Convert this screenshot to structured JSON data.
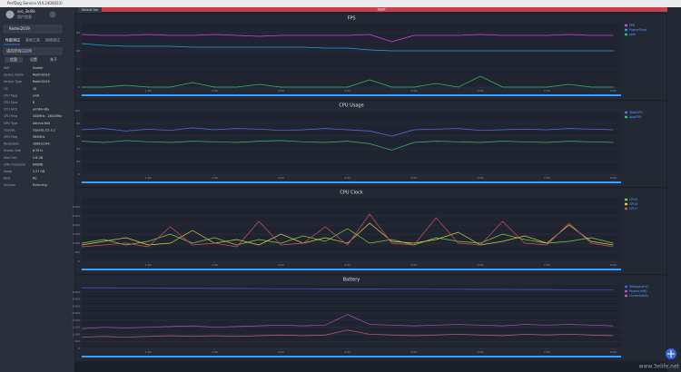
{
  "window": {
    "title": "PerfDog Service V(4.2400023)",
    "tab": "Default Tab",
    "banner": "labeP",
    "watermark": "www.3elife.net"
  },
  "sidebar": {
    "user": "sso_3elife",
    "user_sub": "用户信息",
    "device": "Redmi2019",
    "tabs": [
      "性能测试",
      "其他工具",
      "网络测试"
    ],
    "app_select": "请选择测试应用",
    "subtabs": [
      "信息",
      "设置",
      "关于"
    ],
    "rows": [
      [
        "Wifi",
        "Enable"
      ],
      [
        "Device Name",
        "Redmi2019"
      ],
      [
        "Device Type",
        "Redmi2019"
      ],
      [
        "OS",
        "10"
      ],
      [
        "CPU Type",
        "sm8"
      ],
      [
        "CPU Core",
        "8"
      ],
      [
        "CPU Arch",
        "arm64-v8a"
      ],
      [
        "CPU Freq",
        "300MHz - 2841MHz"
      ],
      [
        "GPU Type",
        "Adreno 640"
      ],
      [
        "OpenGL",
        "OpenGL ES 3.2"
      ],
      [
        "GPU Freq",
        "585MHz"
      ],
      [
        "Resolution",
        "1080x2340"
      ],
      [
        "Screen Size",
        "6.39 in"
      ],
      [
        "Max Fmt",
        "5.8 GB"
      ],
      [
        "LMK Threshold",
        "640MB"
      ],
      [
        "Swap",
        "2.57 GB"
      ],
      [
        "Root",
        "No"
      ],
      [
        "SeLinux",
        "Enforcing"
      ]
    ]
  },
  "chart_data": [
    {
      "type": "line",
      "title": "FPS",
      "x": [
        0,
        20,
        40,
        60,
        80,
        100,
        120,
        140,
        160,
        180,
        200,
        220,
        240,
        260,
        280,
        300,
        320,
        340,
        360,
        380,
        400,
        420,
        440,
        460,
        480
      ],
      "xlim": [
        0,
        487
      ],
      "xticks": [
        {
          "value": 60,
          "label": "1:00"
        },
        {
          "value": 120,
          "label": "2:00"
        },
        {
          "value": 180,
          "label": "3:00"
        },
        {
          "value": 240,
          "label": "4:00"
        },
        {
          "value": 300,
          "label": "5:00"
        },
        {
          "value": 360,
          "label": "6:00"
        },
        {
          "value": 420,
          "label": "7:00"
        },
        {
          "value": 480,
          "label": "8:00"
        }
      ],
      "ylim": [
        0,
        70
      ],
      "yticks": [
        0,
        20,
        40,
        60
      ],
      "grid": true,
      "series": [
        {
          "name": "FPS",
          "color": "#e040e0",
          "values": [
            58,
            57,
            57,
            58,
            57,
            57,
            58,
            57,
            56,
            57,
            57,
            57,
            57,
            58,
            50,
            57,
            57,
            57,
            58,
            57,
            57,
            57,
            58,
            57,
            57
          ]
        },
        {
          "name": "FrameTime",
          "color": "#2aa0d8",
          "values": [
            48,
            46,
            45,
            45,
            45,
            44,
            44,
            44,
            44,
            44,
            44,
            43,
            43,
            41,
            40,
            40,
            40,
            40,
            40,
            40,
            40,
            40,
            40,
            40,
            40
          ]
        },
        {
          "name": "Jank",
          "color": "#30c060",
          "values": [
            0,
            0,
            2,
            0,
            0,
            5,
            0,
            0,
            3,
            0,
            0,
            0,
            0,
            8,
            0,
            0,
            4,
            0,
            12,
            0,
            0,
            0,
            3,
            0,
            0
          ]
        }
      ]
    },
    {
      "type": "line",
      "title": "CPU Usage",
      "x": [
        0,
        20,
        40,
        60,
        80,
        100,
        120,
        140,
        160,
        180,
        200,
        220,
        240,
        260,
        280,
        300,
        320,
        340,
        360,
        380,
        400,
        420,
        440,
        460,
        480
      ],
      "xlim": [
        0,
        487
      ],
      "xticks": [
        {
          "value": 60,
          "label": "1:00"
        },
        {
          "value": 120,
          "label": "2:00"
        },
        {
          "value": 180,
          "label": "3:00"
        },
        {
          "value": 240,
          "label": "4:00"
        },
        {
          "value": 300,
          "label": "5:00"
        },
        {
          "value": 360,
          "label": "6:00"
        },
        {
          "value": 420,
          "label": "7:00"
        },
        {
          "value": 480,
          "label": "8:00"
        }
      ],
      "ylim": [
        0,
        100
      ],
      "yticks": [
        0,
        20,
        40,
        60,
        80,
        100
      ],
      "grid": true,
      "series": [
        {
          "name": "TotalCPU",
          "color": "#5b6ee8",
          "values": [
            70,
            72,
            68,
            71,
            69,
            73,
            70,
            72,
            71,
            69,
            70,
            72,
            70,
            68,
            60,
            70,
            71,
            72,
            69,
            70,
            71,
            70,
            72,
            71,
            70
          ]
        },
        {
          "name": "AppCPU",
          "color": "#3cb878",
          "values": [
            52,
            50,
            53,
            51,
            50,
            52,
            51,
            50,
            52,
            53,
            51,
            50,
            52,
            48,
            38,
            50,
            52,
            51,
            50,
            52,
            51,
            50,
            52,
            51,
            50
          ]
        }
      ]
    },
    {
      "type": "line",
      "title": "CPU Clock",
      "x": [
        0,
        20,
        40,
        60,
        80,
        100,
        120,
        140,
        160,
        180,
        200,
        220,
        240,
        260,
        280,
        300,
        320,
        340,
        360,
        380,
        400,
        420,
        440,
        460,
        480
      ],
      "xlim": [
        0,
        487
      ],
      "xticks": [
        {
          "value": 60,
          "label": "1:00"
        },
        {
          "value": 120,
          "label": "2:00"
        },
        {
          "value": 180,
          "label": "3:00"
        },
        {
          "value": 240,
          "label": "4:00"
        },
        {
          "value": 300,
          "label": "5:00"
        },
        {
          "value": 360,
          "label": "6:00"
        },
        {
          "value": 420,
          "label": "7:00"
        },
        {
          "value": 480,
          "label": "8:00"
        }
      ],
      "ylim": [
        0,
        3500
      ],
      "yticks": [
        0,
        500,
        {
          "value": 1000,
          "label": "1,000"
        },
        {
          "value": 1500,
          "label": "1,500"
        },
        {
          "value": 2000,
          "label": "2,000"
        },
        {
          "value": 2500,
          "label": "2,500"
        },
        {
          "value": 3000,
          "label": "3,000"
        }
      ],
      "grid": true,
      "series": [
        {
          "name": "CPU0",
          "color": "#7ad040",
          "values": [
            1000,
            1200,
            900,
            1100,
            1500,
            1000,
            1300,
            900,
            1200,
            1000,
            1400,
            1100,
            1800,
            1000,
            1200,
            900,
            1300,
            1100,
            1000,
            1500,
            1200,
            1000,
            1100,
            1300,
            1000
          ]
        },
        {
          "name": "CPU4",
          "color": "#d8d040",
          "values": [
            900,
            1100,
            1300,
            900,
            1000,
            1700,
            1000,
            1200,
            900,
            1500,
            1000,
            1300,
            1000,
            2100,
            1100,
            1000,
            1200,
            1600,
            900,
            1100,
            1400,
            1000,
            2000,
            1100,
            900
          ]
        },
        {
          "name": "CPU7",
          "color": "#d05060",
          "values": [
            800,
            900,
            1000,
            800,
            1900,
            900,
            1000,
            800,
            2200,
            900,
            1000,
            1900,
            900,
            2600,
            1000,
            900,
            2400,
            1000,
            900,
            2200,
            1000,
            900,
            2100,
            1000,
            800
          ]
        }
      ]
    },
    {
      "type": "line",
      "title": "Battery",
      "x": [
        0,
        20,
        40,
        60,
        80,
        100,
        120,
        140,
        160,
        180,
        200,
        220,
        240,
        260,
        280,
        300,
        320,
        340,
        360,
        380,
        400,
        420,
        440,
        460,
        480
      ],
      "xlim": [
        0,
        487
      ],
      "xticks": [
        {
          "value": 60,
          "label": "1:00"
        },
        {
          "value": 120,
          "label": "2:00"
        },
        {
          "value": 180,
          "label": "3:00"
        },
        {
          "value": 240,
          "label": "4:00"
        },
        {
          "value": 300,
          "label": "5:00"
        },
        {
          "value": 360,
          "label": "6:00"
        },
        {
          "value": 420,
          "label": "7:00"
        },
        {
          "value": 480,
          "label": "8:00"
        }
      ],
      "ylim": [
        0,
        4500
      ],
      "yticks": [
        0,
        500,
        {
          "value": 1000,
          "label": "1,000"
        },
        {
          "value": 1500,
          "label": "1,500"
        },
        {
          "value": 2000,
          "label": "2,000"
        },
        {
          "value": 2500,
          "label": "2,500"
        },
        {
          "value": 3000,
          "label": "3,000"
        },
        {
          "value": 3500,
          "label": "3,500"
        },
        {
          "value": 4000,
          "label": "4,000"
        }
      ],
      "grid": true,
      "series": [
        {
          "name": "Voltage(mV)",
          "color": "#4060e0",
          "values": [
            4300,
            4300,
            4280,
            4280,
            4260,
            4260,
            4250,
            4250,
            4240,
            4230,
            4230,
            4220,
            4220,
            4210,
            4200,
            4200,
            4190,
            4190,
            4180,
            4180,
            4170,
            4170,
            4160,
            4160,
            4150
          ]
        },
        {
          "name": "Power(mW)",
          "color": "#b050c0",
          "values": [
            1400,
            1500,
            1450,
            1500,
            1550,
            1600,
            1500,
            1550,
            1600,
            1650,
            1600,
            1650,
            2400,
            1700,
            1650,
            1600,
            1650,
            1700,
            1650,
            1600,
            1700,
            1650,
            1700,
            1650,
            1600
          ]
        },
        {
          "name": "Current(mA)",
          "color": "#c06080",
          "values": [
            800,
            850,
            800,
            850,
            900,
            850,
            900,
            850,
            900,
            950,
            900,
            950,
            1300,
            1000,
            950,
            900,
            950,
            1000,
            950,
            900,
            1000,
            950,
            1000,
            950,
            900
          ]
        }
      ]
    }
  ]
}
